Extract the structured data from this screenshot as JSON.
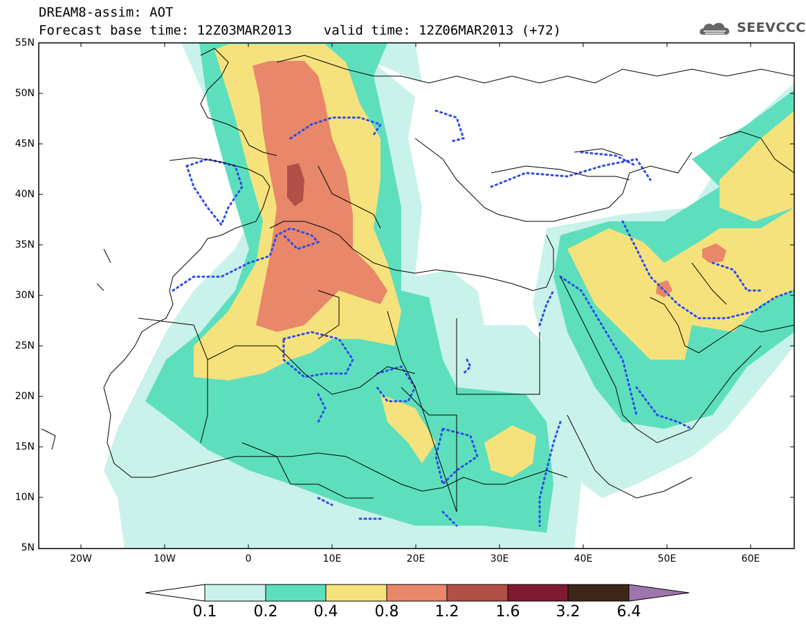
{
  "header": {
    "line1": "DREAM8-assim: AOT",
    "line2": "Forecast base time: 12Z03MAR2013    valid time: 12Z06MAR2013 (+72)",
    "logo_text": "SEEVCCC"
  },
  "map": {
    "region": "North Africa, Europe and Middle East",
    "variable": "AOT",
    "lat_labels": [
      "55N",
      "50N",
      "45N",
      "40N",
      "35N",
      "30N",
      "25N",
      "20N",
      "15N",
      "10N",
      "5N"
    ],
    "lon_labels": [
      "20W",
      "10W",
      "0",
      "10E",
      "20E",
      "30E",
      "40E",
      "50E",
      "60E"
    ],
    "lat_range": [
      5,
      55
    ],
    "lon_range": [
      -25,
      65
    ]
  },
  "colorbar": {
    "levels": [
      "0.1",
      "0.2",
      "0.4",
      "0.8",
      "1.2",
      "1.6",
      "3.2",
      "6.4"
    ],
    "colors": [
      "#ffffff",
      "#c9f2ea",
      "#5ddfbd",
      "#f6e27c",
      "#e8876a",
      "#b24f47",
      "#7f1931",
      "#3e2618",
      "#9c76ad"
    ]
  }
}
